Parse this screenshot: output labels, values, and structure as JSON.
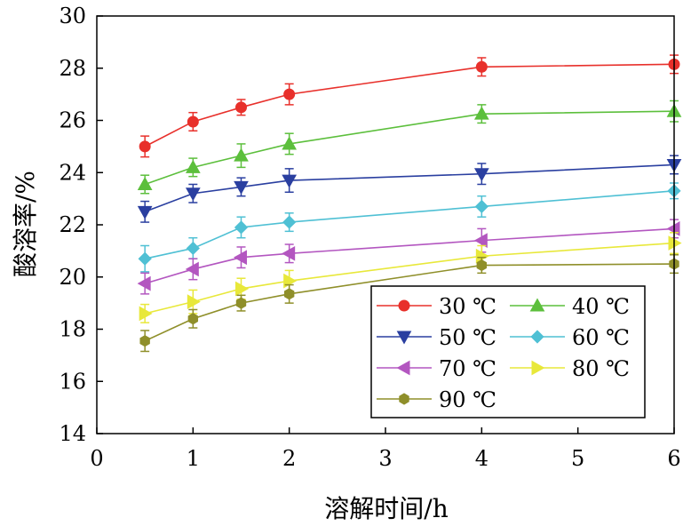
{
  "chart_data": {
    "type": "line",
    "xlabel": "溶解时间/h",
    "ylabel": "酸溶率/%",
    "xlim": [
      0,
      6
    ],
    "ylim": [
      14,
      30
    ],
    "xticks": [
      0,
      1,
      2,
      3,
      4,
      5,
      6
    ],
    "yticks": [
      14,
      16,
      18,
      20,
      22,
      24,
      26,
      28,
      30
    ],
    "grid": false,
    "legend_position": "bottom-right",
    "x": [
      0.5,
      1,
      1.5,
      2,
      4,
      6
    ],
    "series": [
      {
        "name": "30 ℃",
        "color": "#e8302b",
        "marker": "circle",
        "values": [
          25.0,
          25.95,
          26.5,
          27.0,
          28.05,
          28.15
        ],
        "errors": [
          0.4,
          0.35,
          0.3,
          0.4,
          0.35,
          0.35
        ]
      },
      {
        "name": "40 ℃",
        "color": "#5cbf3c",
        "marker": "triangle-up",
        "values": [
          23.55,
          24.2,
          24.65,
          25.1,
          26.25,
          26.35
        ],
        "errors": [
          0.35,
          0.35,
          0.45,
          0.4,
          0.35,
          0.4
        ]
      },
      {
        "name": "50 ℃",
        "color": "#2a3fa0",
        "marker": "triangle-down",
        "values": [
          22.5,
          23.2,
          23.45,
          23.7,
          23.95,
          24.3
        ],
        "errors": [
          0.4,
          0.35,
          0.35,
          0.45,
          0.4,
          0.35
        ]
      },
      {
        "name": "60 ℃",
        "color": "#4fc0d4",
        "marker": "diamond",
        "values": [
          20.7,
          21.1,
          21.9,
          22.1,
          22.7,
          23.3
        ],
        "errors": [
          0.5,
          0.4,
          0.4,
          0.35,
          0.4,
          0.3
        ]
      },
      {
        "name": "70 ℃",
        "color": "#b356c0",
        "marker": "triangle-left",
        "values": [
          19.75,
          20.3,
          20.75,
          20.9,
          21.4,
          21.85
        ],
        "errors": [
          0.4,
          0.4,
          0.4,
          0.35,
          0.45,
          0.35
        ]
      },
      {
        "name": "80 ℃",
        "color": "#e8e83a",
        "marker": "triangle-right",
        "values": [
          18.6,
          19.05,
          19.55,
          19.85,
          20.8,
          21.3
        ],
        "errors": [
          0.35,
          0.45,
          0.4,
          0.4,
          0.4,
          0.4
        ]
      },
      {
        "name": "90 ℃",
        "color": "#8f8f2a",
        "marker": "hexagon",
        "values": [
          17.55,
          18.4,
          19.0,
          19.35,
          20.45,
          20.5
        ],
        "errors": [
          0.4,
          0.35,
          0.3,
          0.35,
          0.3,
          0.35
        ]
      }
    ]
  }
}
